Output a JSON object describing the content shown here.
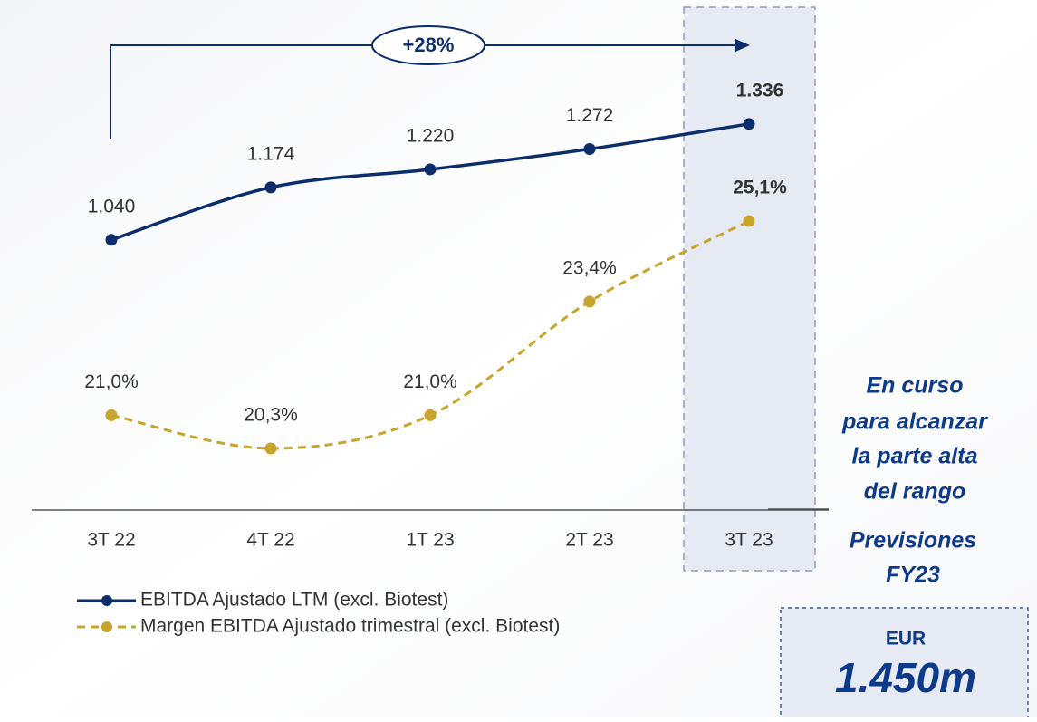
{
  "chart_data": {
    "type": "line",
    "categories": [
      "3T 22",
      "4T 22",
      "1T 23",
      "2T 23",
      "3T 23"
    ],
    "series": [
      {
        "name": "EBITDA Ajustado LTM (excl. Biotest)",
        "color": "#0b2d6b",
        "dash": false,
        "values": [
          1040,
          1174,
          1220,
          1272,
          1336
        ],
        "value_labels": [
          "1.040",
          "1.174",
          "1.220",
          "1.272",
          "1.336"
        ]
      },
      {
        "name": "Margen EBITDA Ajustado trimestral (excl. Biotest)",
        "color": "#c9a42c",
        "dash": true,
        "axis": "y2",
        "values": [
          21.0,
          20.3,
          21.0,
          23.4,
          25.1
        ],
        "value_labels": [
          "21,0%",
          "20,3%",
          "21,0%",
          "23,4%",
          "25,1%"
        ]
      }
    ],
    "ylim": [
      350,
      1560
    ],
    "y2lim": [
      19,
      29
    ],
    "growth_annotation": "+28%",
    "side_note": [
      "En curso",
      "para alcanzar",
      "la parte alta",
      "del rango"
    ],
    "guidance_title": [
      "Previsiones",
      "FY23"
    ],
    "guidance_unit": "EUR",
    "guidance_value": "1.450m"
  }
}
